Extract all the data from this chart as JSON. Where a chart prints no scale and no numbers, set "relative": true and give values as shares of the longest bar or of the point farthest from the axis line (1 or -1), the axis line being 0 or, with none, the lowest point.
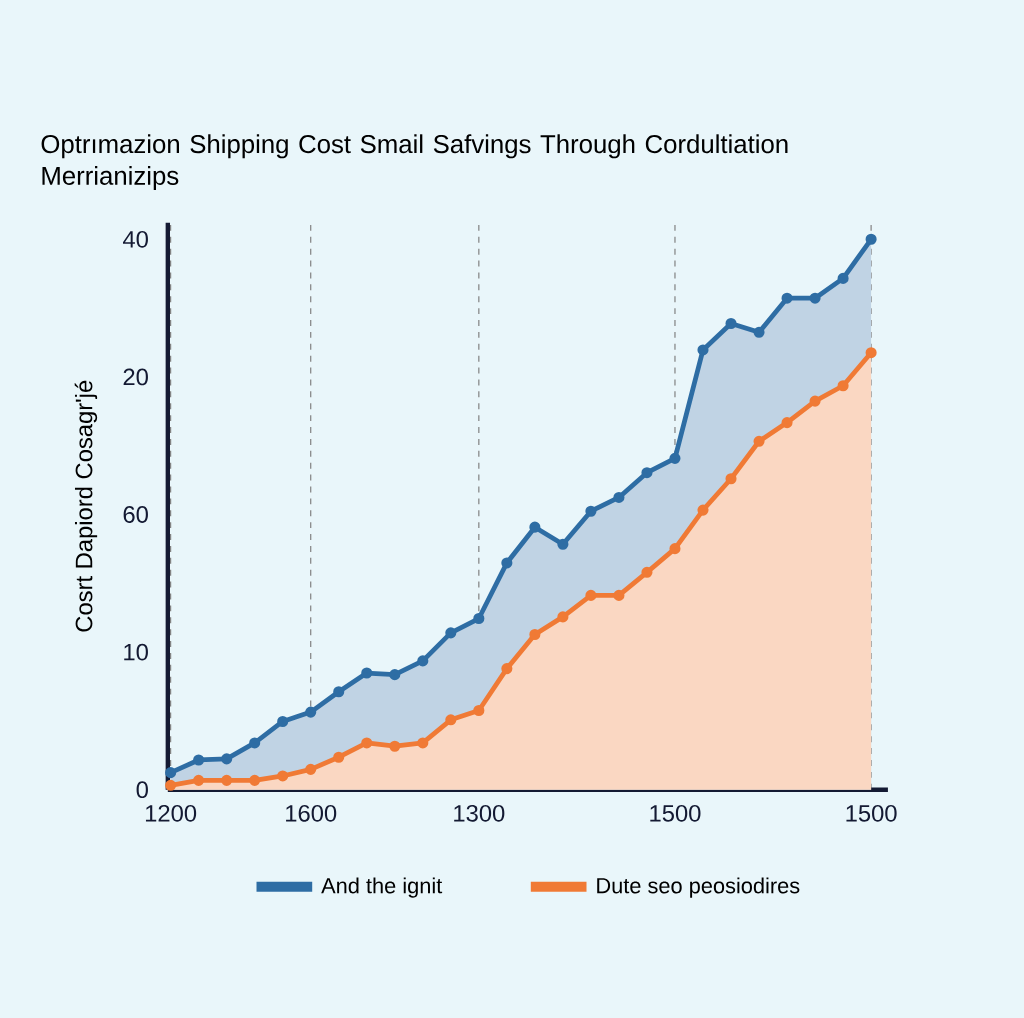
{
  "chart_data": {
    "type": "area",
    "title": "Optrımazion Shipping Cost Smail Safvings Through Cordultiation Merrianizips",
    "ylabel": "Cosrt Dapiord Cosagr'jé",
    "relative": true,
    "categories": [
      "1200",
      null,
      null,
      null,
      null,
      "1600",
      null,
      null,
      null,
      null,
      null,
      "1300",
      null,
      null,
      null,
      null,
      null,
      null,
      "1500",
      null,
      null,
      null,
      null,
      null,
      null,
      "1500"
    ],
    "series": [
      {
        "name": "And the ignit",
        "color": "#2e6da4",
        "values": [
          0.031,
          0.054,
          0.056,
          0.085,
          0.124,
          0.141,
          0.178,
          0.212,
          0.209,
          0.234,
          0.285,
          0.311,
          0.412,
          0.477,
          0.446,
          0.506,
          0.531,
          0.576,
          0.602,
          0.799,
          0.847,
          0.831,
          0.893,
          0.893,
          0.929,
          1
        ]
      },
      {
        "name": "Dute seo peosiodires",
        "color": "#f07a35",
        "values": [
          0.008,
          0.017,
          0.017,
          0.017,
          0.025,
          0.037,
          0.059,
          0.085,
          0.079,
          0.085,
          0.127,
          0.144,
          0.22,
          0.282,
          0.314,
          0.353,
          0.353,
          0.395,
          0.438,
          0.508,
          0.565,
          0.633,
          0.667,
          0.706,
          0.734,
          0.794
        ]
      }
    ],
    "annotations": [
      "0",
      "10",
      "60",
      "20",
      "40"
    ],
    "grid": "x",
    "marker": "circle",
    "legend": "bottom"
  }
}
